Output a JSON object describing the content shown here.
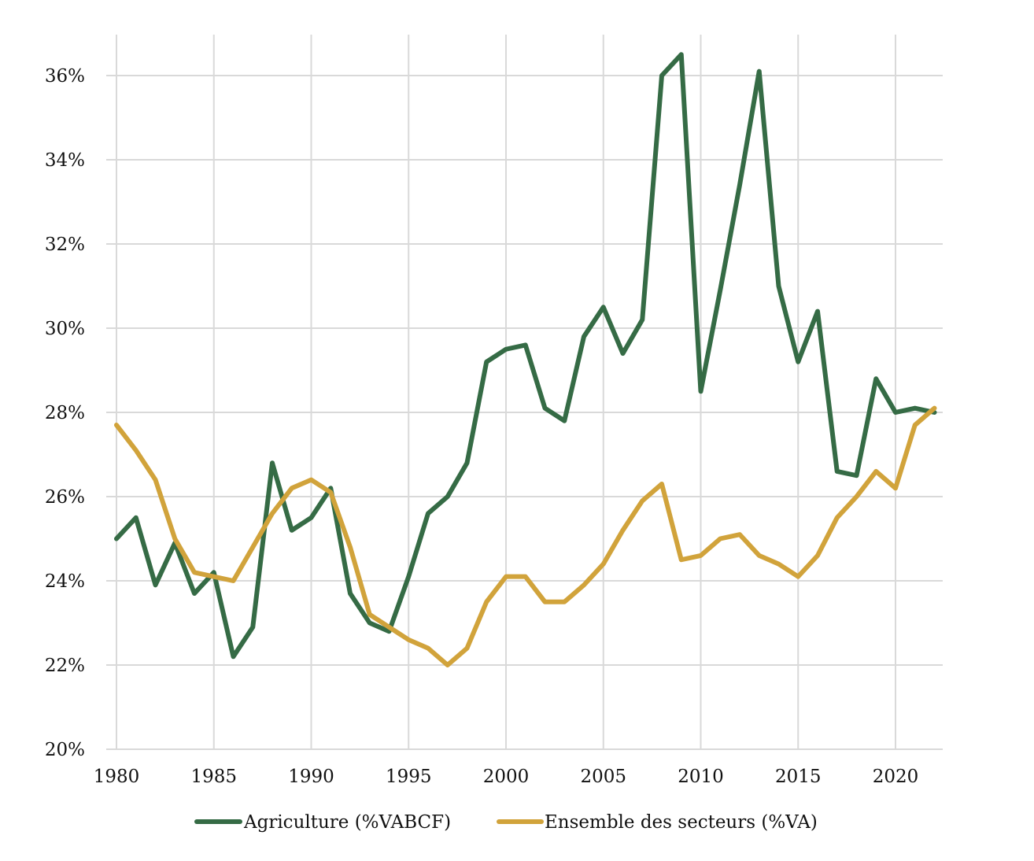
{
  "chart_data": {
    "type": "line",
    "title": "",
    "xlabel": "",
    "ylabel": "",
    "xlim": [
      1980,
      2022
    ],
    "ylim": [
      0.2,
      0.37
    ],
    "grid": true,
    "legend_position": "bottom",
    "x_ticks": [
      1980,
      1985,
      1990,
      1995,
      2000,
      2005,
      2010,
      2015,
      2020
    ],
    "x_tick_labels": [
      "1980",
      "1985",
      "1990",
      "1995",
      "2000",
      "2005",
      "2010",
      "2015",
      "2020"
    ],
    "y_ticks": [
      0.2,
      0.22,
      0.24,
      0.26,
      0.28,
      0.3,
      0.32,
      0.34,
      0.36
    ],
    "y_tick_labels": [
      "20%",
      "22%",
      "24%",
      "26%",
      "28%",
      "30%",
      "32%",
      "34%",
      "36%"
    ],
    "x": [
      1980,
      1981,
      1982,
      1983,
      1984,
      1985,
      1986,
      1987,
      1988,
      1989,
      1990,
      1991,
      1992,
      1993,
      1994,
      1995,
      1996,
      1997,
      1998,
      1999,
      2000,
      2001,
      2002,
      2003,
      2004,
      2005,
      2006,
      2007,
      2008,
      2009,
      2010,
      2011,
      2012,
      2013,
      2014,
      2015,
      2016,
      2017,
      2018,
      2019,
      2020,
      2021,
      2022
    ],
    "series": [
      {
        "name": "Agriculture (%VABCF)",
        "color": "#356b45",
        "values": [
          0.25,
          0.255,
          0.239,
          0.249,
          0.237,
          0.242,
          0.222,
          0.229,
          0.268,
          0.252,
          0.255,
          0.262,
          0.237,
          0.23,
          0.228,
          0.241,
          0.256,
          0.26,
          0.268,
          0.292,
          0.295,
          0.296,
          0.281,
          0.278,
          0.298,
          0.305,
          0.294,
          0.302,
          0.36,
          0.365,
          0.285,
          0.309,
          0.334,
          0.361,
          0.31,
          0.292,
          0.304,
          0.266,
          0.265,
          0.288,
          0.28,
          0.281,
          0.28
        ]
      },
      {
        "name": "Ensemble des secteurs (%VA)",
        "color": "#d1a33b",
        "values": [
          0.277,
          0.271,
          0.264,
          0.25,
          0.242,
          0.241,
          0.24,
          0.248,
          0.256,
          0.262,
          0.264,
          0.261,
          0.248,
          0.232,
          0.229,
          0.226,
          0.224,
          0.22,
          0.224,
          0.235,
          0.241,
          0.241,
          0.235,
          0.235,
          0.239,
          0.244,
          0.252,
          0.259,
          0.263,
          0.245,
          0.246,
          0.25,
          0.251,
          0.246,
          0.244,
          0.241,
          0.246,
          0.255,
          0.26,
          0.266,
          0.262,
          0.277,
          0.281
        ]
      }
    ]
  }
}
